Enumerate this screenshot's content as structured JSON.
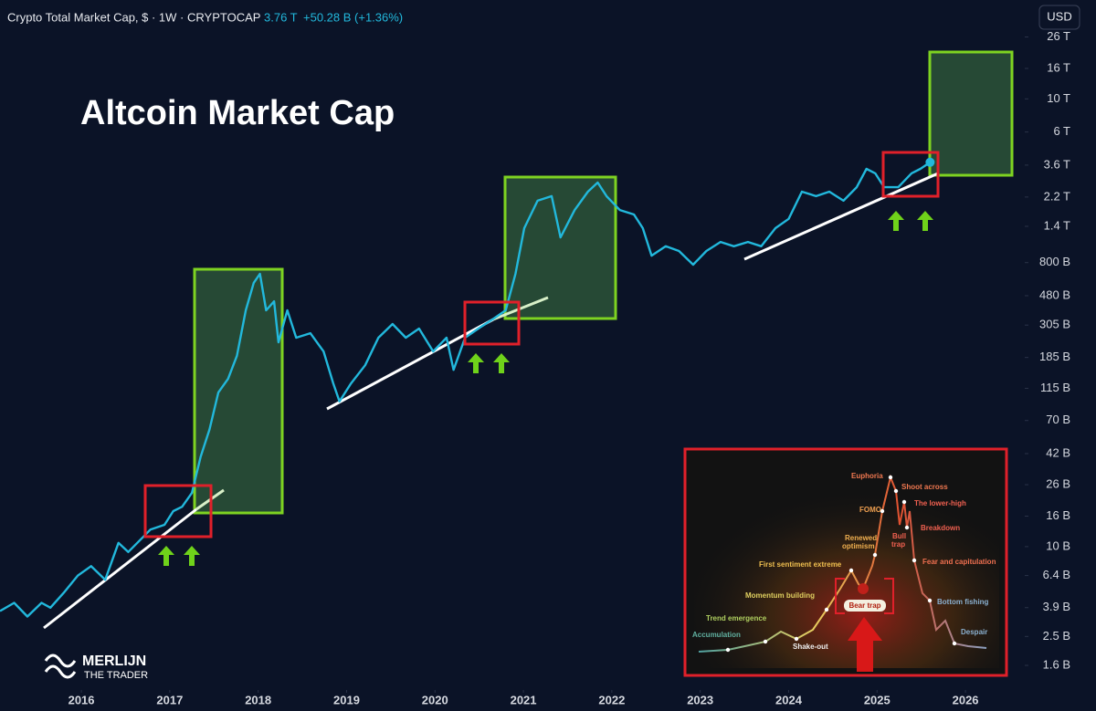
{
  "header": {
    "symbol": "Crypto Total Market Cap, $ · 1W · CRYPTOCAP",
    "last": "3.76 T",
    "change": "+50.28 B (+1.36%)",
    "currency": "USD"
  },
  "chart_data": {
    "type": "line",
    "title": "Altcoin Market Cap",
    "color": "#22b8dc",
    "log_scale": true,
    "grid": false,
    "x": [
      2015.08,
      2015.24,
      2015.39,
      2015.55,
      2015.65,
      2015.8,
      2015.96,
      2016.11,
      2016.27,
      2016.42,
      2016.53,
      2016.68,
      2016.78,
      2016.94,
      2017.04,
      2017.14,
      2017.25,
      2017.35,
      2017.45,
      2017.55,
      2017.66,
      2017.76,
      2017.86,
      2017.95,
      2018.02,
      2018.09,
      2018.18,
      2018.23,
      2018.33,
      2018.43,
      2018.59,
      2018.74,
      2018.85,
      2018.92,
      2019.05,
      2019.21,
      2019.36,
      2019.52,
      2019.67,
      2019.82,
      2019.98,
      2020.13,
      2020.21,
      2020.34,
      2020.49,
      2020.65,
      2020.8,
      2020.91,
      2021.01,
      2021.16,
      2021.32,
      2021.42,
      2021.58,
      2021.73,
      2021.84,
      2021.94,
      2022.09,
      2022.25,
      2022.35,
      2022.45,
      2022.61,
      2022.76,
      2022.92,
      2023.07,
      2023.23,
      2023.38,
      2023.54,
      2023.69,
      2023.85,
      2024.0,
      2024.15,
      2024.31,
      2024.46,
      2024.62,
      2024.77,
      2024.88,
      2024.98,
      2025.08,
      2025.24,
      2025.39,
      2025.49,
      2025.6
    ],
    "values": [
      3700000000.0,
      4200000000.0,
      3400000000.0,
      4200000000.0,
      3900000000.0,
      4900000000.0,
      6400000000.0,
      7400000000.0,
      6000000000.0,
      10600000000.0,
      9200000000.0,
      11300000000.0,
      13000000000.0,
      14000000000.0,
      17300000000.0,
      18500000000.0,
      22900000000.0,
      40000000000.0,
      61000000000.0,
      108000000000.0,
      133000000000.0,
      190000000000.0,
      383000000000.0,
      585000000000.0,
      673000000000.0,
      383000000000.0,
      440000000000.0,
      234000000000.0,
      383000000000.0,
      251000000000.0,
      269000000000.0,
      203000000000.0,
      124000000000.0,
      94000000000.0,
      124000000000.0,
      164000000000.0,
      251000000000.0,
      310000000000.0,
      251000000000.0,
      289000000000.0,
      203000000000.0,
      251000000000.0,
      153000000000.0,
      251000000000.0,
      289000000000.0,
      333000000000.0,
      383000000000.0,
      673000000000.0,
      1360000000000.0,
      2080000000000.0,
      2230000000000.0,
      1180000000000.0,
      1800000000000.0,
      2390000000000.0,
      2750000000000.0,
      2230000000000.0,
      1800000000000.0,
      1680000000000.0,
      1360000000000.0,
      891000000000.0,
      1030000000000.0,
      957000000000.0,
      775000000000.0,
      957000000000.0,
      1100000000000.0,
      1030000000000.0,
      1100000000000.0,
      1030000000000.0,
      1360000000000.0,
      1570000000000.0,
      2390000000000.0,
      2230000000000.0,
      2390000000000.0,
      2080000000000.0,
      2560000000000.0,
      3400000000000.0,
      3170000000000.0,
      2560000000000.0,
      2560000000000.0,
      3170000000000.0,
      3400000000000.0,
      3760000000000.0
    ],
    "xlim": [
      2015.08,
      2026.65
    ],
    "xticks": [
      2016,
      2017,
      2018,
      2019,
      2020,
      2021,
      2022,
      2023,
      2024,
      2025,
      2026
    ],
    "ylim": [
      1110000000.0,
      31000000000000.0
    ],
    "yticks": [
      {
        "value": 26000000000000.0,
        "label": "26 T"
      },
      {
        "value": 16000000000000.0,
        "label": "16 T"
      },
      {
        "value": 10000000000000.0,
        "label": "10 T"
      },
      {
        "value": 6000000000000.0,
        "label": "6 T"
      },
      {
        "value": 3600000000000.0,
        "label": "3.6 T"
      },
      {
        "value": 2200000000000.0,
        "label": "2.2 T"
      },
      {
        "value": 1400000000000.0,
        "label": "1.4 T"
      },
      {
        "value": 800000000000.0,
        "label": "800 B"
      },
      {
        "value": 480000000000.0,
        "label": "480 B"
      },
      {
        "value": 305000000000.0,
        "label": "305 B"
      },
      {
        "value": 185000000000.0,
        "label": "185 B"
      },
      {
        "value": 115000000000.0,
        "label": "115 B"
      },
      {
        "value": 70000000000.0,
        "label": "70 B"
      },
      {
        "value": 42000000000.0,
        "label": "42 B"
      },
      {
        "value": 26000000000.0,
        "label": "26 B"
      },
      {
        "value": 16000000000.0,
        "label": "16 B"
      },
      {
        "value": 10000000000.0,
        "label": "10 B"
      },
      {
        "value": 6400000000.0,
        "label": "6.4 B"
      },
      {
        "value": 3900000000.0,
        "label": "3.9 B"
      },
      {
        "value": 2500000000.0,
        "label": "2.5 B"
      },
      {
        "value": 1600000000.0,
        "label": "1.6 B"
      }
    ]
  },
  "logo": {
    "name": "MERLIJN",
    "tagline": "THE TRADER"
  },
  "inset": {
    "labels": [
      "Euphoria",
      "Shoot across",
      "FOMO",
      "The lower-high",
      "Bull",
      "trap",
      "Renewed",
      "optimism",
      "Breakdown",
      "First sentiment extreme",
      "Fear and capitulation",
      "Momentum building",
      "Bear trap",
      "Bottom fishing",
      "Trend emergence",
      "Despair",
      "Accumulation",
      "Shake-out"
    ]
  }
}
